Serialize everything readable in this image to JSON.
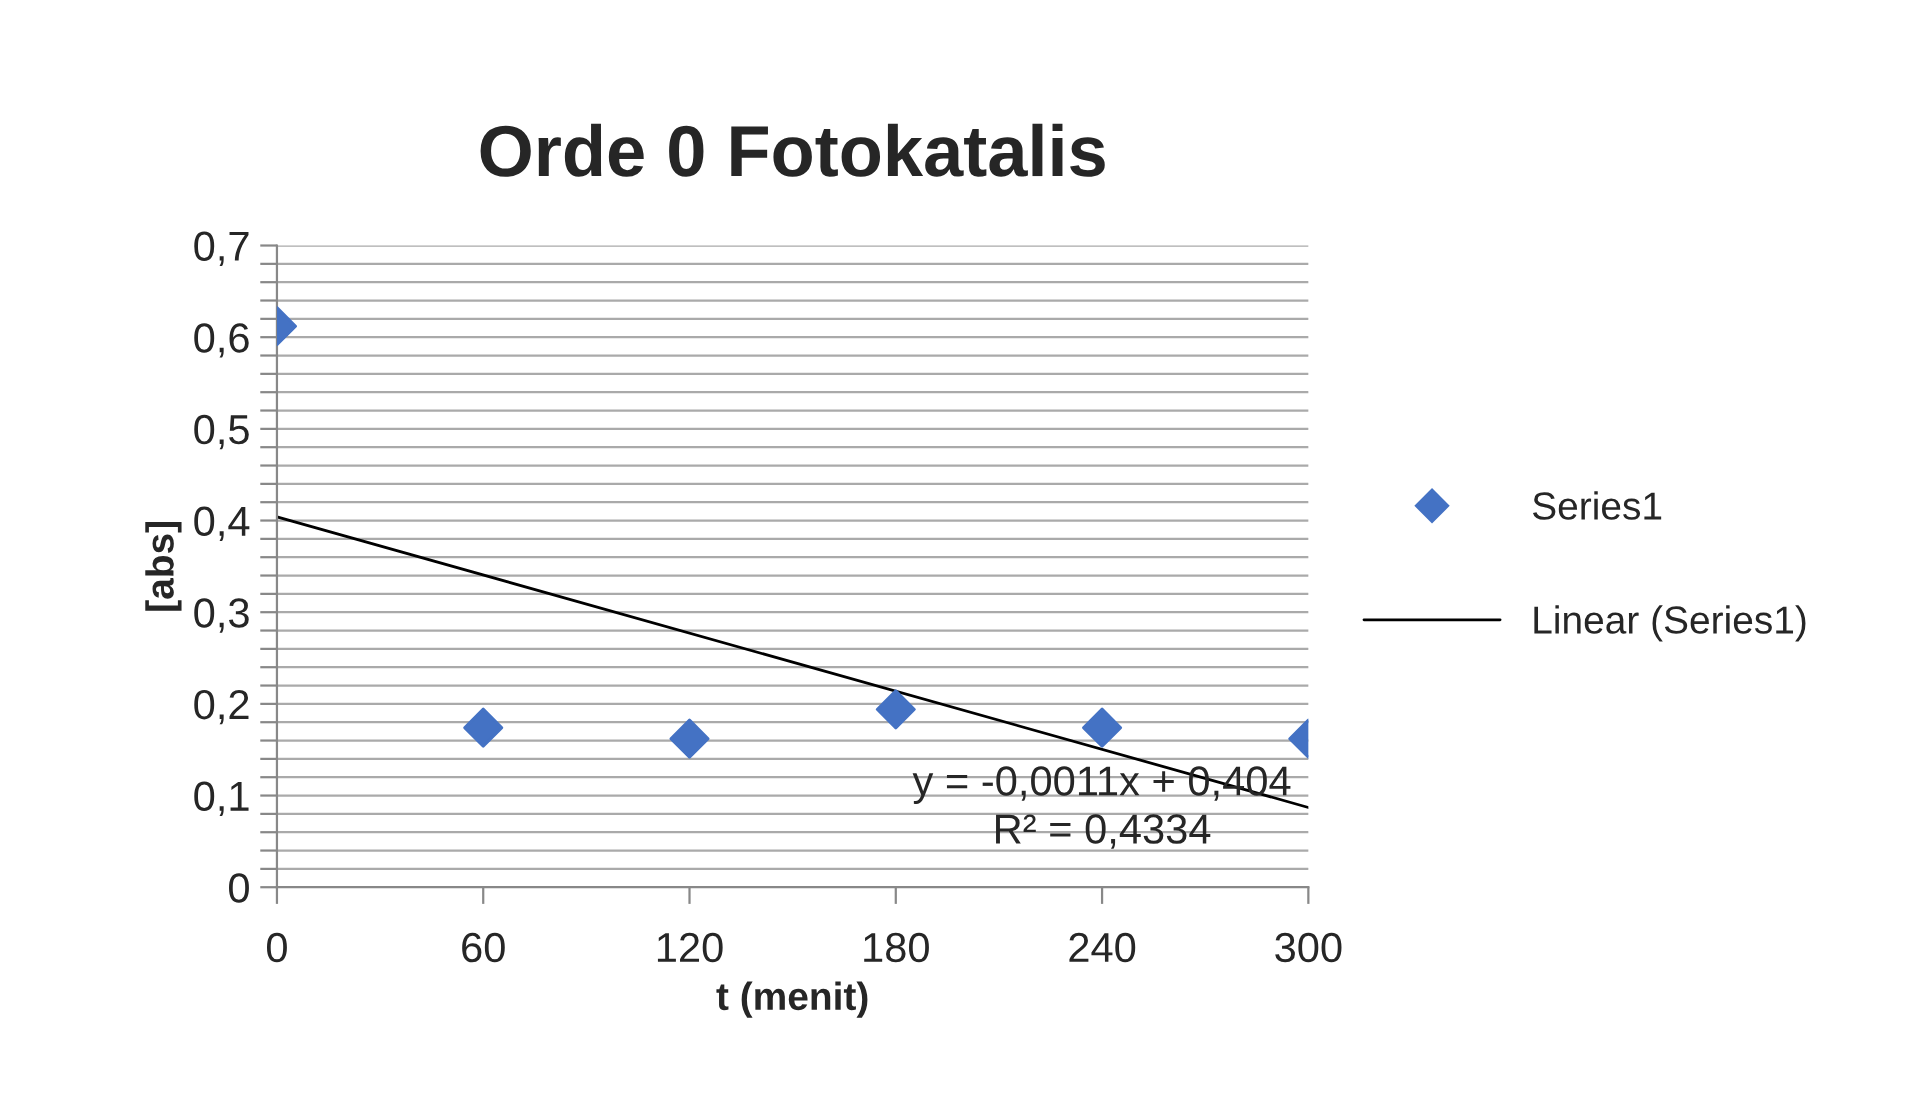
{
  "chart_data": {
    "type": "scatter",
    "title": "Orde 0 Fotokatalis",
    "xlabel": "t (menit)",
    "ylabel": "[abs]",
    "x": [
      0,
      60,
      120,
      180,
      240,
      300
    ],
    "series": [
      {
        "name": "Series1",
        "color": "#4472c4",
        "marker": "diamond",
        "values": [
          0.612,
          0.174,
          0.162,
          0.194,
          0.174,
          0.162
        ]
      },
      {
        "name": "Linear (Series1)",
        "type": "line",
        "color": "#000000",
        "marker": "none",
        "x": [
          0,
          300
        ],
        "values": [
          0.404,
          0.087
        ]
      }
    ],
    "xlim": [
      0,
      300
    ],
    "xticks": [
      0,
      60,
      120,
      180,
      240,
      300
    ],
    "ylim": [
      0,
      0.7
    ],
    "yticks": [
      {
        "value": 0,
        "label": "0"
      },
      {
        "value": 0.02,
        "label": null
      },
      {
        "value": 0.04,
        "label": null
      },
      {
        "value": 0.06,
        "label": null
      },
      {
        "value": 0.08,
        "label": null
      },
      {
        "value": 0.1,
        "label": "0,1"
      },
      {
        "value": 0.12,
        "label": null
      },
      {
        "value": 0.14,
        "label": null
      },
      {
        "value": 0.16,
        "label": null
      },
      {
        "value": 0.18,
        "label": null
      },
      {
        "value": 0.2,
        "label": "0,2"
      },
      {
        "value": 0.22,
        "label": null
      },
      {
        "value": 0.24,
        "label": null
      },
      {
        "value": 0.26,
        "label": null
      },
      {
        "value": 0.28,
        "label": null
      },
      {
        "value": 0.3,
        "label": "0,3"
      },
      {
        "value": 0.32,
        "label": null
      },
      {
        "value": 0.34,
        "label": null
      },
      {
        "value": 0.36,
        "label": null
      },
      {
        "value": 0.38,
        "label": null
      },
      {
        "value": 0.4,
        "label": "0,4"
      },
      {
        "value": 0.42,
        "label": null
      },
      {
        "value": 0.44,
        "label": null
      },
      {
        "value": 0.46,
        "label": null
      },
      {
        "value": 0.48,
        "label": null
      },
      {
        "value": 0.5,
        "label": "0,5"
      },
      {
        "value": 0.52,
        "label": null
      },
      {
        "value": 0.54,
        "label": null
      },
      {
        "value": 0.56,
        "label": null
      },
      {
        "value": 0.58,
        "label": null
      },
      {
        "value": 0.6,
        "label": "0,6"
      },
      {
        "value": 0.62,
        "label": null
      },
      {
        "value": 0.64,
        "label": null
      },
      {
        "value": 0.66,
        "label": null
      },
      {
        "value": 0.68,
        "label": null
      },
      {
        "value": 0.7,
        "label": "0,7"
      }
    ],
    "grid": "y",
    "legend": "right",
    "annotations": [
      "y = -0,0011x + 0,404",
      "R² = 0,4334"
    ]
  }
}
